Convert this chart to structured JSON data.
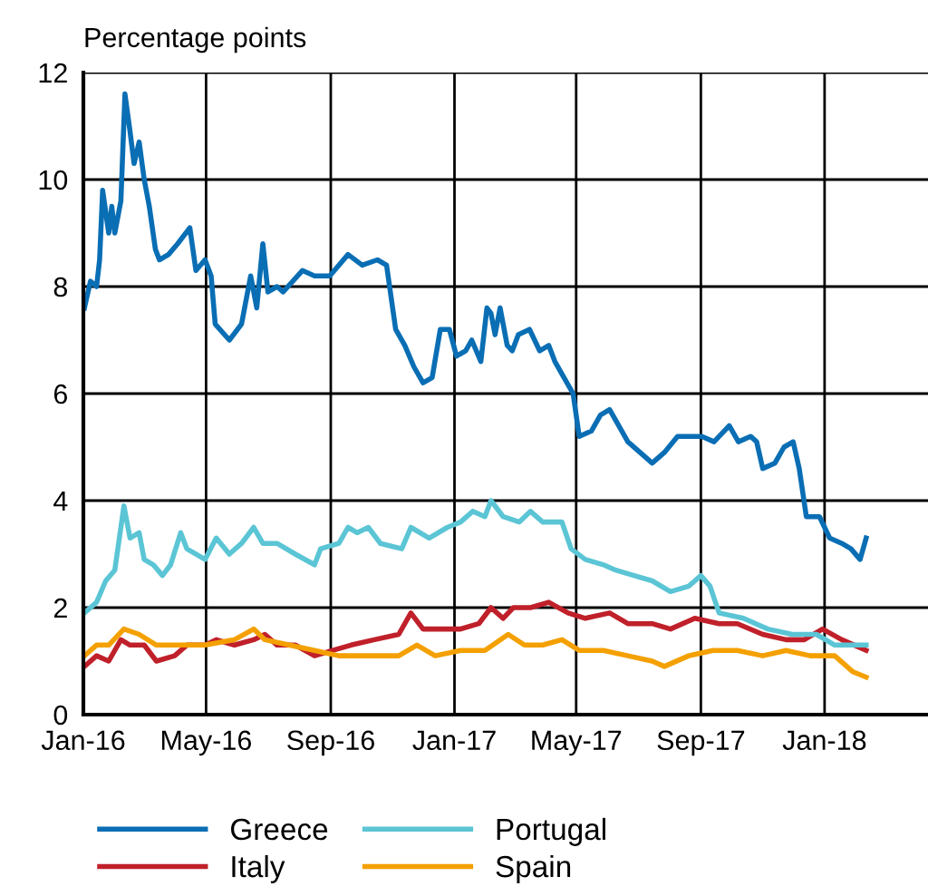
{
  "chart_data": {
    "type": "line",
    "ylabel": "Percentage points",
    "xlim": [
      "2016-01-01",
      "2018-04-13"
    ],
    "xticks": [
      {
        "value": "2016-01-01",
        "label": "Jan-16"
      },
      {
        "value": "2016-05-01",
        "label": "May-16"
      },
      {
        "value": "2016-09-01",
        "label": "Sep-16"
      },
      {
        "value": "2017-01-01",
        "label": "Jan-17"
      },
      {
        "value": "2017-05-01",
        "label": "May-17"
      },
      {
        "value": "2017-09-01",
        "label": "Sep-17"
      },
      {
        "value": "2018-01-01",
        "label": "Jan-18"
      }
    ],
    "ylim": [
      0,
      12
    ],
    "yticks": [
      0,
      2,
      4,
      6,
      8,
      10,
      12
    ],
    "grid": true,
    "legend": "bottom",
    "marker": "none",
    "line_style": "solid",
    "series": [
      {
        "name": "Greece",
        "color": "#0a6eb4",
        "x": [
          "2016-01-02",
          "2016-01-08",
          "2016-01-14",
          "2016-01-17",
          "2016-01-20",
          "2016-01-26",
          "2016-01-29",
          "2016-02-01",
          "2016-02-07",
          "2016-02-11",
          "2016-02-16",
          "2016-02-20",
          "2016-02-25",
          "2016-03-01",
          "2016-03-06",
          "2016-03-12",
          "2016-03-16",
          "2016-03-25",
          "2016-04-03",
          "2016-04-15",
          "2016-04-21",
          "2016-04-30",
          "2016-05-06",
          "2016-05-10",
          "2016-05-24",
          "2016-06-05",
          "2016-06-14",
          "2016-06-20",
          "2016-06-26",
          "2016-07-01",
          "2016-07-10",
          "2016-07-16",
          "2016-08-04",
          "2016-08-16",
          "2016-08-31",
          "2016-09-18",
          "2016-10-02",
          "2016-10-17",
          "2016-10-26",
          "2016-11-04",
          "2016-11-13",
          "2016-11-22",
          "2016-12-01",
          "2016-12-10",
          "2016-12-18",
          "2016-12-27",
          "2017-01-03",
          "2017-01-12",
          "2017-01-18",
          "2017-01-27",
          "2017-02-02",
          "2017-02-06",
          "2017-02-10",
          "2017-02-15",
          "2017-02-22",
          "2017-02-27",
          "2017-03-05",
          "2017-03-16",
          "2017-03-26",
          "2017-04-04",
          "2017-04-10",
          "2017-04-19",
          "2017-04-28",
          "2017-05-04",
          "2017-05-16",
          "2017-05-25",
          "2017-06-03",
          "2017-06-12",
          "2017-06-21",
          "2017-07-03",
          "2017-07-15",
          "2017-07-27",
          "2017-08-09",
          "2017-08-21",
          "2017-09-02",
          "2017-09-14",
          "2017-09-29",
          "2017-10-08",
          "2017-10-20",
          "2017-10-26",
          "2017-11-01",
          "2017-11-13",
          "2017-11-22",
          "2017-12-01",
          "2017-12-07",
          "2017-12-14",
          "2017-12-27",
          "2018-01-06",
          "2018-01-18",
          "2018-01-27",
          "2018-02-05",
          "2018-02-11"
        ],
        "values": [
          7.6,
          8.1,
          8.0,
          8.5,
          9.8,
          9.0,
          9.5,
          9.0,
          9.6,
          11.6,
          10.9,
          10.3,
          10.7,
          10.0,
          9.5,
          8.7,
          8.5,
          8.6,
          8.8,
          9.1,
          8.3,
          8.5,
          8.2,
          7.3,
          7.0,
          7.3,
          8.2,
          7.6,
          8.8,
          7.9,
          8.0,
          7.9,
          8.3,
          8.2,
          8.2,
          8.6,
          8.4,
          8.5,
          8.4,
          7.2,
          6.9,
          6.5,
          6.2,
          6.3,
          7.2,
          7.2,
          6.7,
          6.8,
          7.0,
          6.6,
          7.6,
          7.5,
          7.1,
          7.6,
          6.9,
          6.8,
          7.1,
          7.2,
          6.8,
          6.9,
          6.6,
          6.3,
          6.0,
          5.2,
          5.3,
          5.6,
          5.7,
          5.4,
          5.1,
          4.9,
          4.7,
          4.9,
          5.2,
          5.2,
          5.2,
          5.1,
          5.4,
          5.1,
          5.2,
          5.1,
          4.6,
          4.7,
          5.0,
          5.1,
          4.6,
          3.7,
          3.7,
          3.3,
          3.2,
          3.1,
          2.9,
          3.3
        ]
      },
      {
        "name": "Italy",
        "color": "#c0202a",
        "x": [
          "2016-01-02",
          "2016-01-14",
          "2016-01-26",
          "2016-02-07",
          "2016-02-16",
          "2016-03-01",
          "2016-03-13",
          "2016-03-31",
          "2016-04-12",
          "2016-04-30",
          "2016-05-11",
          "2016-05-29",
          "2016-06-17",
          "2016-06-28",
          "2016-07-10",
          "2016-07-28",
          "2016-08-16",
          "2016-09-03",
          "2016-09-21",
          "2016-10-14",
          "2016-11-07",
          "2016-11-19",
          "2016-12-01",
          "2016-12-25",
          "2017-01-07",
          "2017-01-25",
          "2017-02-06",
          "2017-02-18",
          "2017-02-28",
          "2017-03-17",
          "2017-04-04",
          "2017-04-23",
          "2017-05-10",
          "2017-06-03",
          "2017-06-21",
          "2017-07-15",
          "2017-08-02",
          "2017-08-26",
          "2017-09-19",
          "2017-10-07",
          "2017-11-01",
          "2017-11-24",
          "2017-12-12",
          "2017-12-30",
          "2018-01-18",
          "2018-02-11"
        ],
        "values": [
          0.9,
          1.1,
          1.0,
          1.4,
          1.3,
          1.3,
          1.0,
          1.1,
          1.3,
          1.3,
          1.4,
          1.3,
          1.4,
          1.5,
          1.3,
          1.3,
          1.1,
          1.2,
          1.3,
          1.4,
          1.5,
          1.9,
          1.6,
          1.6,
          1.6,
          1.7,
          2.0,
          1.8,
          2.0,
          2.0,
          2.1,
          1.9,
          1.8,
          1.9,
          1.7,
          1.7,
          1.6,
          1.8,
          1.7,
          1.7,
          1.5,
          1.4,
          1.4,
          1.6,
          1.4,
          1.2
        ]
      },
      {
        "name": "Portugal",
        "color": "#5bc5d5",
        "x": [
          "2016-01-02",
          "2016-01-14",
          "2016-01-23",
          "2016-02-01",
          "2016-02-10",
          "2016-02-16",
          "2016-02-25",
          "2016-03-01",
          "2016-03-10",
          "2016-03-19",
          "2016-03-27",
          "2016-04-06",
          "2016-04-12",
          "2016-04-30",
          "2016-05-11",
          "2016-05-24",
          "2016-06-05",
          "2016-06-17",
          "2016-06-26",
          "2016-07-10",
          "2016-07-28",
          "2016-08-16",
          "2016-08-22",
          "2016-09-09",
          "2016-09-18",
          "2016-09-27",
          "2016-10-08",
          "2016-10-20",
          "2016-11-10",
          "2016-11-19",
          "2016-12-07",
          "2016-12-25",
          "2017-01-07",
          "2017-01-19",
          "2017-01-31",
          "2017-02-06",
          "2017-02-18",
          "2017-03-06",
          "2017-03-17",
          "2017-03-29",
          "2017-04-17",
          "2017-04-26",
          "2017-05-10",
          "2017-05-28",
          "2017-06-09",
          "2017-06-27",
          "2017-07-15",
          "2017-08-02",
          "2017-08-20",
          "2017-09-01",
          "2017-09-10",
          "2017-09-19",
          "2017-10-13",
          "2017-11-06",
          "2017-11-30",
          "2017-12-24",
          "2018-01-11",
          "2018-01-23",
          "2018-02-11"
        ],
        "values": [
          1.9,
          2.1,
          2.5,
          2.7,
          3.9,
          3.3,
          3.4,
          2.9,
          2.8,
          2.6,
          2.8,
          3.4,
          3.1,
          2.9,
          3.3,
          3.0,
          3.2,
          3.5,
          3.2,
          3.2,
          3.0,
          2.8,
          3.1,
          3.2,
          3.5,
          3.4,
          3.5,
          3.2,
          3.1,
          3.5,
          3.3,
          3.5,
          3.6,
          3.8,
          3.7,
          4.0,
          3.7,
          3.6,
          3.8,
          3.6,
          3.6,
          3.1,
          2.9,
          2.8,
          2.7,
          2.6,
          2.5,
          2.3,
          2.4,
          2.6,
          2.4,
          1.9,
          1.8,
          1.6,
          1.5,
          1.5,
          1.3,
          1.3,
          1.3
        ]
      },
      {
        "name": "Spain",
        "color": "#f4a000",
        "x": [
          "2016-01-02",
          "2016-01-14",
          "2016-01-26",
          "2016-02-10",
          "2016-02-25",
          "2016-03-13",
          "2016-03-31",
          "2016-04-30",
          "2016-05-29",
          "2016-06-17",
          "2016-06-28",
          "2016-07-22",
          "2016-08-16",
          "2016-09-09",
          "2016-10-14",
          "2016-11-07",
          "2016-11-25",
          "2016-12-13",
          "2017-01-07",
          "2017-01-31",
          "2017-02-23",
          "2017-03-11",
          "2017-03-29",
          "2017-04-17",
          "2017-05-04",
          "2017-05-28",
          "2017-06-21",
          "2017-07-15",
          "2017-07-27",
          "2017-08-20",
          "2017-09-13",
          "2017-10-07",
          "2017-11-01",
          "2017-11-24",
          "2017-12-18",
          "2018-01-11",
          "2018-01-29",
          "2018-02-11"
        ],
        "values": [
          1.1,
          1.3,
          1.3,
          1.6,
          1.5,
          1.3,
          1.3,
          1.3,
          1.4,
          1.6,
          1.4,
          1.3,
          1.2,
          1.1,
          1.1,
          1.1,
          1.3,
          1.1,
          1.2,
          1.2,
          1.5,
          1.3,
          1.3,
          1.4,
          1.2,
          1.2,
          1.1,
          1.0,
          0.9,
          1.1,
          1.2,
          1.2,
          1.1,
          1.2,
          1.1,
          1.1,
          0.8,
          0.7
        ]
      }
    ]
  }
}
